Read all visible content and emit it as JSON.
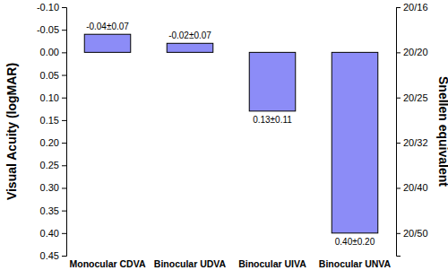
{
  "chart_data": {
    "type": "bar",
    "categories": [
      "Monocular CDVA",
      "Binocular UDVA",
      "Binocular UIVA",
      "Binocular UNVA"
    ],
    "values": [
      -0.04,
      -0.02,
      0.13,
      0.4
    ],
    "value_labels": [
      "-0.04±0.07",
      "-0.02±0.07",
      "0.13±0.11",
      "0.40±0.20"
    ],
    "data_labels": true,
    "color": "#8c8cf7",
    "y_label": "Visual Acuity (logMAR)",
    "y2_label": "Snellen equivalent",
    "ylim": [
      -0.1,
      0.45
    ],
    "yticks": [
      {
        "value": -0.1,
        "label": "-0.10"
      },
      -0.05,
      {
        "value": 0,
        "label": "0.00"
      },
      0.05,
      {
        "value": 0.1,
        "label": "0.10"
      },
      0.15,
      {
        "value": 0.2,
        "label": "0.20"
      },
      0.25,
      {
        "value": 0.3,
        "label": "0.30"
      },
      0.35,
      {
        "value": 0.4,
        "label": "0.40"
      },
      0.45
    ],
    "y2lim": [
      -0.1,
      0.45
    ],
    "y2ticks": [
      {
        "value": -0.1,
        "label": "20/16"
      },
      {
        "value": 0,
        "label": "20/20"
      },
      {
        "value": 0.1,
        "label": "20/25"
      },
      {
        "value": 0.2,
        "label": "20/32"
      },
      {
        "value": 0.3,
        "label": "20/40"
      },
      {
        "value": 0.4,
        "label": "20/50"
      }
    ],
    "grid": false
  }
}
